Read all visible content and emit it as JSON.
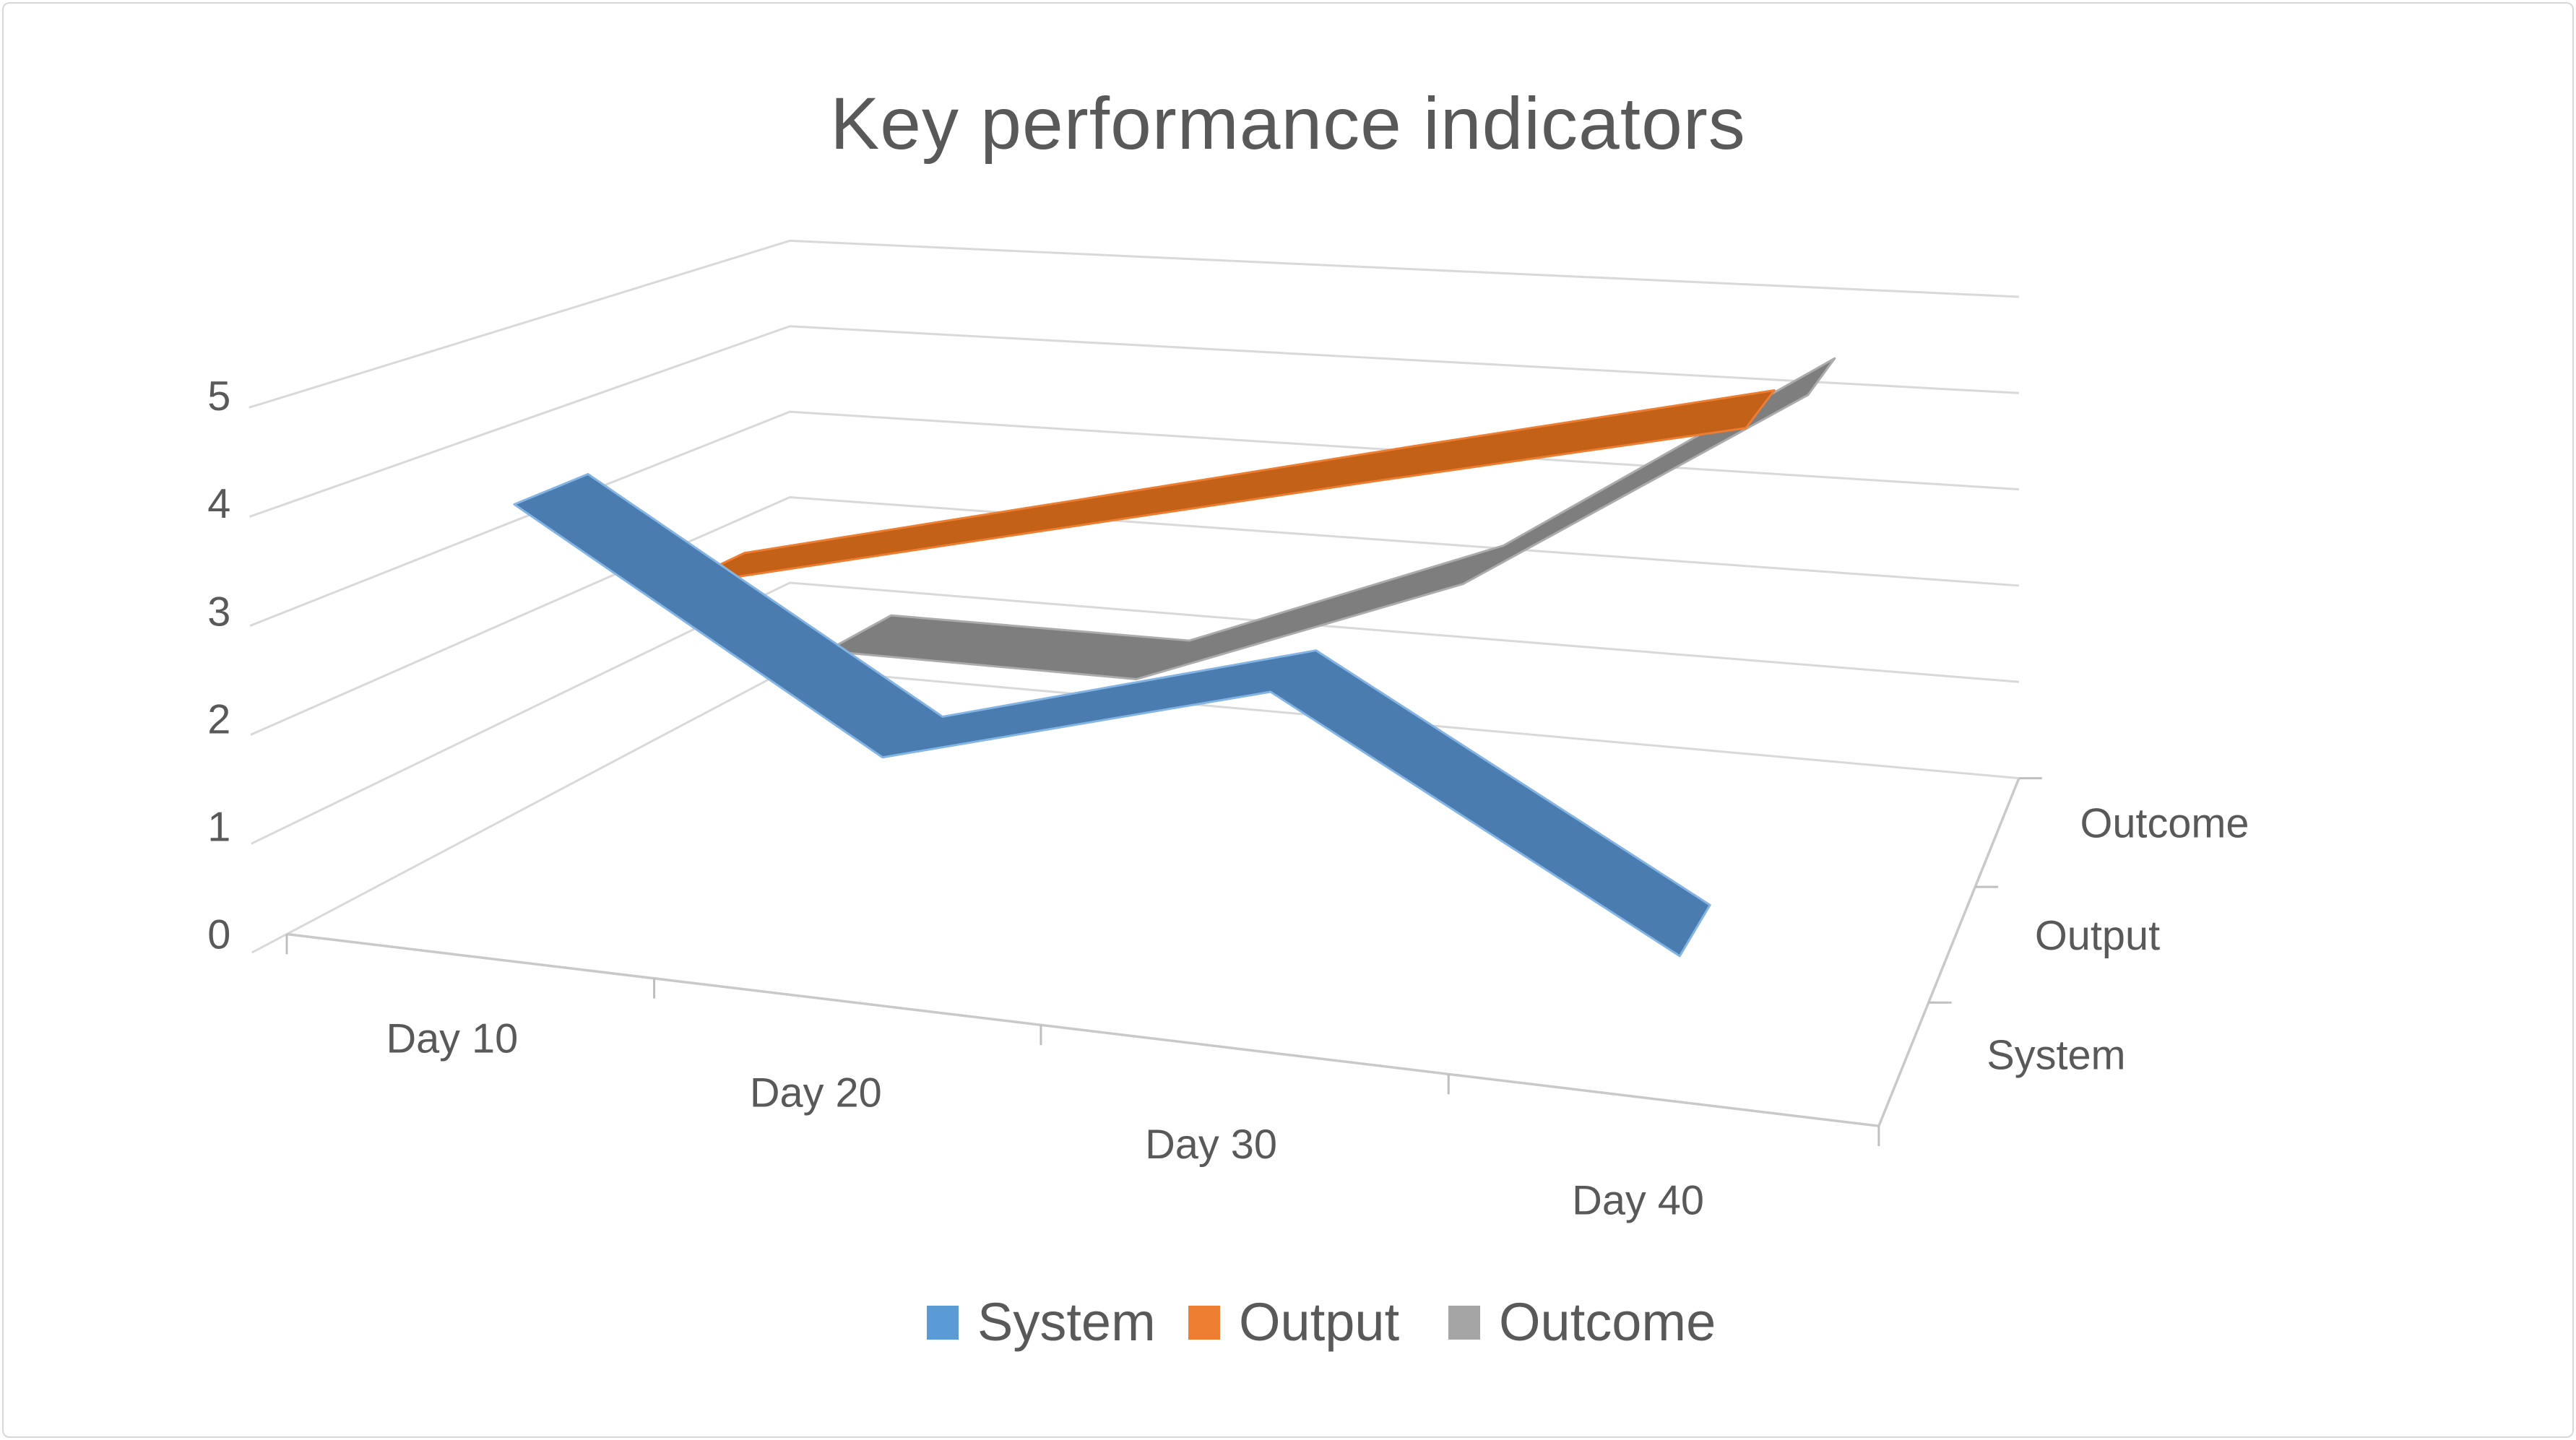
{
  "chart_data": {
    "type": "line",
    "variant": "3d-ribbon-line",
    "title": "Key performance indicators",
    "categories": [
      "Day 10",
      "Day 20",
      "Day 30",
      "Day 40"
    ],
    "series": [
      {
        "name": "System",
        "color": "#5B9BD5",
        "values": [
          4,
          2,
          3,
          1
        ]
      },
      {
        "name": "Output",
        "color": "#ED7D31",
        "values": [
          2.5,
          3.33,
          4.17,
          5
        ]
      },
      {
        "name": "Outcome",
        "color": "#A5A5A5",
        "values": [
          1,
          1,
          2.3,
          4.5
        ]
      }
    ],
    "value_axis": {
      "min": 0,
      "max": 5,
      "step": 1,
      "labels": [
        "0",
        "1",
        "2",
        "3",
        "4",
        "5"
      ]
    },
    "series_axis_labels": [
      "System",
      "Output",
      "Outcome"
    ],
    "legend": {
      "position": "bottom",
      "entries": [
        "System",
        "Output",
        "Outcome"
      ]
    },
    "gridlines": true,
    "text_color": "#595959",
    "gridline_color": "#D9D9D9",
    "axis_color": "#C9C9C9"
  }
}
